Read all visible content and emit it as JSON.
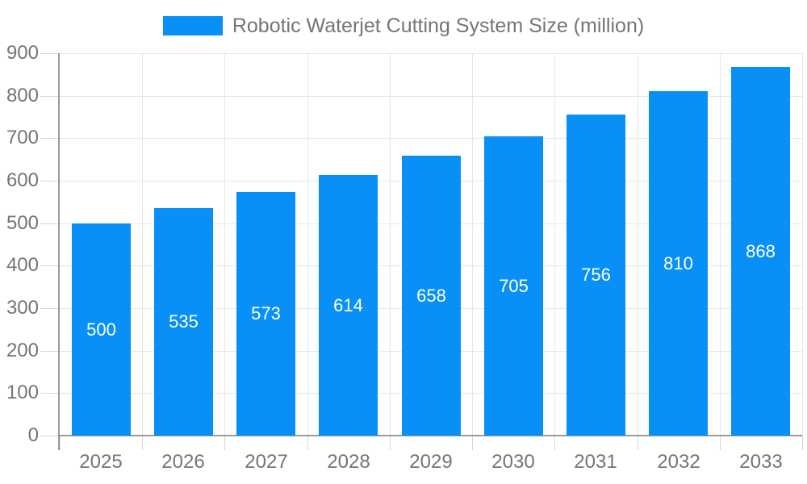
{
  "legend": {
    "label": "Robotic Waterjet Cutting System Size (million)",
    "position": "top-center"
  },
  "chart_data": {
    "type": "bar",
    "title": "Robotic Waterjet Cutting System Size (million)",
    "categories": [
      "2025",
      "2026",
      "2027",
      "2028",
      "2029",
      "2030",
      "2031",
      "2032",
      "2033"
    ],
    "values": [
      500,
      535,
      573,
      614,
      658,
      705,
      756,
      810,
      868
    ],
    "xlabel": "",
    "ylabel": "",
    "ylim": [
      0,
      900
    ],
    "ytick_step": 100,
    "ytick_labels": [
      "0",
      "100",
      "200",
      "300",
      "400",
      "500",
      "600",
      "700",
      "800",
      "900"
    ],
    "grid": "on",
    "legend_position": "top",
    "value_label_position": "inside-center"
  },
  "colors": {
    "bar": "#0990F7",
    "bar_value_label": "#FFFFFF",
    "grid_line": "#E6E6E6",
    "tick_line": "#D6D6D6",
    "axis_line": "#9B9B9B",
    "axis_label": "#757575",
    "legend_text": "#757575",
    "background": "#FFFFFF"
  }
}
